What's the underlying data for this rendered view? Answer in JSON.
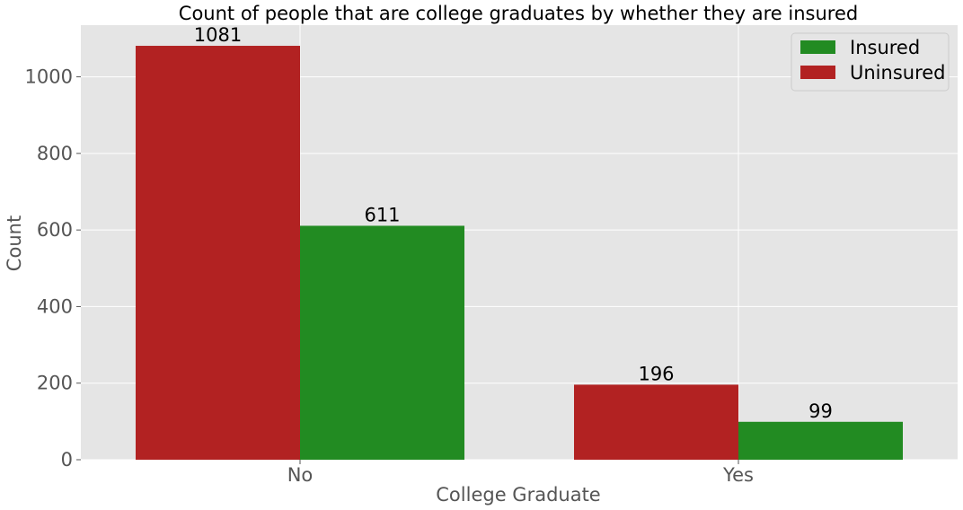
{
  "chart_data": {
    "type": "bar",
    "title": "Count of people that are college graduates by whether they are insured",
    "xlabel": "College Graduate",
    "ylabel": "Count",
    "categories": [
      "No",
      "Yes"
    ],
    "series": [
      {
        "name": "Uninsured",
        "color": "#b22222",
        "values": [
          1081,
          196
        ]
      },
      {
        "name": "Insured",
        "color": "#228b22",
        "values": [
          611,
          99
        ]
      }
    ],
    "legend_order": [
      "Insured",
      "Uninsured"
    ],
    "ylim": [
      0,
      1135
    ],
    "yticks": [
      0,
      200,
      400,
      600,
      800,
      1000
    ],
    "grid": true,
    "legend_position": "top-right",
    "background": "#e5e5e5"
  }
}
